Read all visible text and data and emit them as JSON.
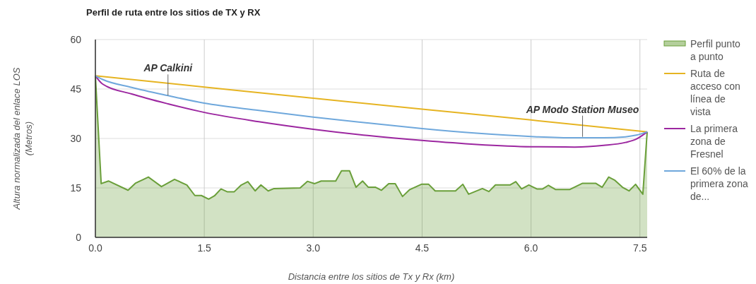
{
  "chart_data": {
    "type": "line",
    "title": "Perfil de ruta entre los sitios de TX y RX",
    "xlabel": "Distancia entre los sitios de Tx y Rx (km)",
    "ylabel": "Altura normalizada del enlace LOS (Metros)",
    "xlim": [
      0,
      7.6
    ],
    "xticks": [
      {
        "value": 0,
        "label": "0.0"
      },
      {
        "value": 1.5,
        "label": "1.5"
      },
      {
        "value": 3,
        "label": "3.0"
      },
      {
        "value": 4.5,
        "label": "4.5"
      },
      {
        "value": 6,
        "label": "6.0"
      },
      {
        "value": 7.5,
        "label": "7.5"
      }
    ],
    "ylim": [
      0,
      60
    ],
    "yticks": [
      0,
      15,
      30,
      45,
      60
    ],
    "grid": true,
    "legend": "right",
    "series": [
      {
        "name": "Perfil punto a punto",
        "type": "area",
        "color": "#6a9f3a",
        "x": [
          0,
          0.08,
          0.18,
          0.45,
          0.55,
          0.73,
          0.91,
          1.09,
          1.26,
          1.37,
          1.46,
          1.56,
          1.64,
          1.73,
          1.82,
          1.91,
          2.01,
          2.1,
          2.2,
          2.28,
          2.38,
          2.46,
          2.82,
          2.92,
          3.02,
          3.11,
          3.31,
          3.39,
          3.5,
          3.59,
          3.68,
          3.76,
          3.86,
          3.94,
          4.04,
          4.13,
          4.23,
          4.33,
          4.49,
          4.59,
          4.68,
          4.96,
          5.06,
          5.14,
          5.33,
          5.42,
          5.51,
          5.71,
          5.79,
          5.87,
          5.97,
          6.08,
          6.16,
          6.24,
          6.34,
          6.53,
          6.71,
          6.89,
          6.98,
          7.07,
          7.15,
          7.26,
          7.35,
          7.44,
          7.54,
          7.6
        ],
        "values": [
          49,
          16.3,
          17.1,
          14.3,
          16.4,
          18.3,
          15.4,
          17.6,
          15.9,
          12.7,
          12.7,
          11.6,
          12.6,
          14.7,
          13.8,
          13.8,
          15.9,
          16.9,
          14.1,
          15.9,
          14.1,
          14.8,
          15,
          17,
          16.3,
          17.1,
          17.1,
          20.2,
          20.2,
          15.2,
          17.1,
          15.2,
          15.2,
          14.3,
          16.3,
          16.3,
          12.4,
          14.5,
          16.1,
          16.1,
          14.1,
          14.1,
          16.1,
          13.1,
          14.8,
          13.9,
          15.9,
          15.9,
          16.9,
          14.7,
          15.9,
          14.7,
          14.7,
          15.8,
          14.5,
          14.5,
          16.4,
          16.4,
          15.2,
          18.3,
          17.4,
          15.2,
          14.1,
          16.1,
          13.1,
          32
        ]
      },
      {
        "name": "Ruta de acceso con línea de vista",
        "color": "#e6b422",
        "x": [
          0,
          1.5,
          3,
          4.5,
          6,
          7.6
        ],
        "values": [
          49,
          45.6,
          42.2,
          38.9,
          35.6,
          32
        ]
      },
      {
        "name": "La primera zona de Fresnel",
        "color": "#9c27a0",
        "x": [
          0,
          0.1,
          0.5,
          1,
          1.5,
          2.25,
          3,
          3.75,
          4.5,
          5.25,
          6,
          6.6,
          7,
          7.3,
          7.45,
          7.6
        ],
        "values": [
          49,
          46.5,
          43.5,
          40.5,
          37.9,
          35.1,
          32.8,
          30.9,
          29.4,
          28.2,
          27.5,
          27.4,
          27.9,
          28.8,
          29.8,
          32
        ]
      },
      {
        "name": "El 60% de la primera zona de...",
        "color": "#6fa8dc",
        "x": [
          0,
          0.1,
          0.5,
          1,
          1.5,
          2.25,
          3,
          3.75,
          4.5,
          5.25,
          6,
          6.6,
          7,
          7.3,
          7.45,
          7.6
        ],
        "values": [
          49,
          47.9,
          45.5,
          43,
          40.7,
          38.5,
          36.5,
          34.7,
          33,
          31.6,
          30.6,
          30.2,
          30.2,
          30.5,
          31,
          32
        ]
      }
    ],
    "annotations": [
      {
        "text": "AP Calkini",
        "x": 1.0,
        "y": 43
      },
      {
        "text": "AP Modo Station Museo",
        "x": 6.71,
        "y": 30.5
      }
    ]
  }
}
